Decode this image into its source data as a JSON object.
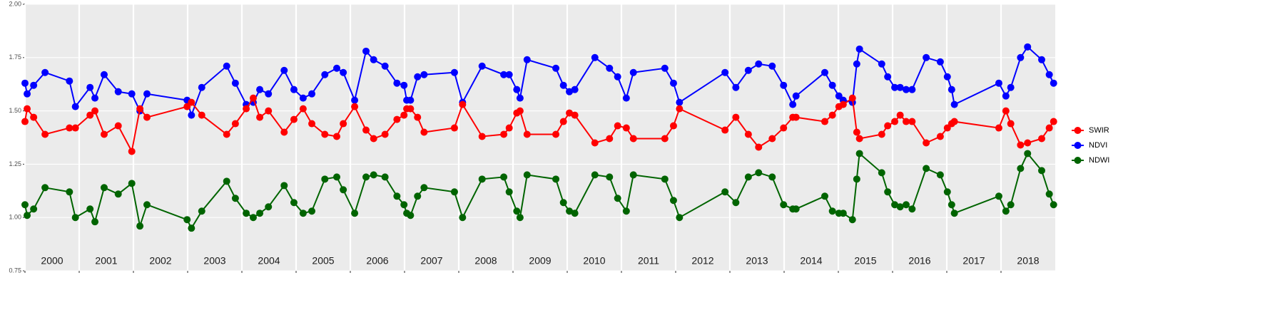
{
  "chart_data": {
    "type": "line",
    "xlim": [
      2000,
      2019
    ],
    "xticks": [
      2000,
      2001,
      2002,
      2003,
      2004,
      2005,
      2006,
      2007,
      2008,
      2009,
      2010,
      2011,
      2012,
      2013,
      2014,
      2015,
      2016,
      2017,
      2018
    ],
    "ylim": [
      0.75,
      2.0
    ],
    "yticks": [
      {
        "value": 0.75,
        "label": "0.75"
      },
      {
        "value": 1.0,
        "label": "1.00"
      },
      {
        "value": 1.25,
        "label": "1.25"
      },
      {
        "value": 1.5,
        "label": "1.50"
      },
      {
        "value": 1.75,
        "label": "1.75"
      },
      {
        "value": 2.0,
        "label": "2.00"
      }
    ],
    "grid": true,
    "legend": "right",
    "year_labels": [
      "2000",
      "2001",
      "2002",
      "2003",
      "2004",
      "2005",
      "2006",
      "2007",
      "2008",
      "2009",
      "2010",
      "2011",
      "2012",
      "2013",
      "2014",
      "2015",
      "2016",
      "2017",
      "2018"
    ],
    "x": [
      2000.0,
      2000.04,
      2000.16,
      2000.37,
      2000.82,
      2000.93,
      2001.2,
      2001.29,
      2001.46,
      2001.72,
      2001.97,
      2002.12,
      2002.25,
      2002.99,
      2003.07,
      2003.26,
      2003.72,
      2003.88,
      2004.08,
      2004.21,
      2004.33,
      2004.49,
      2004.78,
      2004.96,
      2005.13,
      2005.29,
      2005.53,
      2005.75,
      2005.87,
      2006.08,
      2006.29,
      2006.43,
      2006.64,
      2006.86,
      2006.99,
      2007.04,
      2007.11,
      2007.24,
      2007.36,
      2007.92,
      2008.07,
      2008.43,
      2008.83,
      2008.93,
      2009.07,
      2009.13,
      2009.26,
      2009.79,
      2009.93,
      2010.04,
      2010.14,
      2010.51,
      2010.78,
      2010.93,
      2011.09,
      2011.22,
      2011.8,
      2011.96,
      2012.07,
      2012.91,
      2013.11,
      2013.34,
      2013.53,
      2013.78,
      2013.99,
      2014.16,
      2014.22,
      2014.75,
      2014.89,
      2015.01,
      2015.09,
      2015.26,
      2015.34,
      2015.39,
      2015.8,
      2015.91,
      2016.04,
      2016.14,
      2016.25,
      2016.36,
      2016.62,
      2016.88,
      2017.01,
      2017.09,
      2017.14,
      2017.96,
      2018.09,
      2018.18,
      2018.36,
      2018.49,
      2018.75,
      2018.89,
      2018.97
    ],
    "series": [
      {
        "name": "SWIR",
        "color": "#ff0000",
        "values": [
          1.45,
          1.51,
          1.47,
          1.39,
          1.42,
          1.42,
          1.48,
          1.5,
          1.39,
          1.43,
          1.31,
          1.51,
          1.47,
          1.52,
          1.54,
          1.48,
          1.39,
          1.44,
          1.51,
          1.56,
          1.47,
          1.5,
          1.4,
          1.46,
          1.51,
          1.44,
          1.39,
          1.38,
          1.44,
          1.52,
          1.41,
          1.37,
          1.39,
          1.46,
          1.48,
          1.51,
          1.51,
          1.47,
          1.4,
          1.42,
          1.53,
          1.38,
          1.39,
          1.42,
          1.49,
          1.5,
          1.39,
          1.39,
          1.45,
          1.49,
          1.48,
          1.35,
          1.37,
          1.43,
          1.42,
          1.37,
          1.37,
          1.43,
          1.51,
          1.41,
          1.47,
          1.39,
          1.33,
          1.37,
          1.42,
          1.47,
          1.47,
          1.45,
          1.48,
          1.52,
          1.53,
          1.56,
          1.4,
          1.37,
          1.39,
          1.43,
          1.45,
          1.48,
          1.45,
          1.45,
          1.35,
          1.38,
          1.42,
          1.44,
          1.45,
          1.42,
          1.5,
          1.44,
          1.34,
          1.35,
          1.37,
          1.42,
          1.45
        ]
      },
      {
        "name": "NDVI",
        "color": "#0000ff",
        "values": [
          1.63,
          1.58,
          1.62,
          1.68,
          1.64,
          1.52,
          1.61,
          1.56,
          1.67,
          1.59,
          1.58,
          1.5,
          1.58,
          1.55,
          1.48,
          1.61,
          1.71,
          1.63,
          1.53,
          1.54,
          1.6,
          1.58,
          1.69,
          1.6,
          1.56,
          1.58,
          1.67,
          1.7,
          1.68,
          1.55,
          1.78,
          1.74,
          1.71,
          1.63,
          1.62,
          1.55,
          1.55,
          1.66,
          1.67,
          1.68,
          1.54,
          1.71,
          1.67,
          1.67,
          1.6,
          1.56,
          1.74,
          1.7,
          1.62,
          1.59,
          1.6,
          1.75,
          1.7,
          1.66,
          1.56,
          1.68,
          1.7,
          1.63,
          1.54,
          1.68,
          1.61,
          1.69,
          1.72,
          1.71,
          1.62,
          1.53,
          1.57,
          1.68,
          1.62,
          1.57,
          1.55,
          1.54,
          1.72,
          1.79,
          1.72,
          1.66,
          1.61,
          1.61,
          1.6,
          1.6,
          1.75,
          1.73,
          1.66,
          1.6,
          1.53,
          1.63,
          1.57,
          1.61,
          1.75,
          1.8,
          1.74,
          1.67,
          1.63
        ]
      },
      {
        "name": "NDWI",
        "color": "#006400",
        "values": [
          1.06,
          1.01,
          1.04,
          1.14,
          1.12,
          1.0,
          1.04,
          0.98,
          1.14,
          1.11,
          1.16,
          0.96,
          1.06,
          0.99,
          0.95,
          1.03,
          1.17,
          1.09,
          1.02,
          1.0,
          1.02,
          1.05,
          1.15,
          1.07,
          1.02,
          1.03,
          1.18,
          1.19,
          1.13,
          1.02,
          1.19,
          1.2,
          1.19,
          1.1,
          1.06,
          1.02,
          1.01,
          1.1,
          1.14,
          1.12,
          1.0,
          1.18,
          1.19,
          1.12,
          1.03,
          1.0,
          1.2,
          1.18,
          1.07,
          1.03,
          1.02,
          1.2,
          1.19,
          1.09,
          1.03,
          1.2,
          1.18,
          1.08,
          1.0,
          1.12,
          1.07,
          1.19,
          1.21,
          1.19,
          1.06,
          1.04,
          1.04,
          1.1,
          1.03,
          1.02,
          1.02,
          0.99,
          1.18,
          1.3,
          1.21,
          1.12,
          1.06,
          1.05,
          1.06,
          1.04,
          1.23,
          1.2,
          1.12,
          1.06,
          1.02,
          1.1,
          1.03,
          1.06,
          1.23,
          1.3,
          1.22,
          1.11,
          1.06
        ]
      }
    ]
  }
}
